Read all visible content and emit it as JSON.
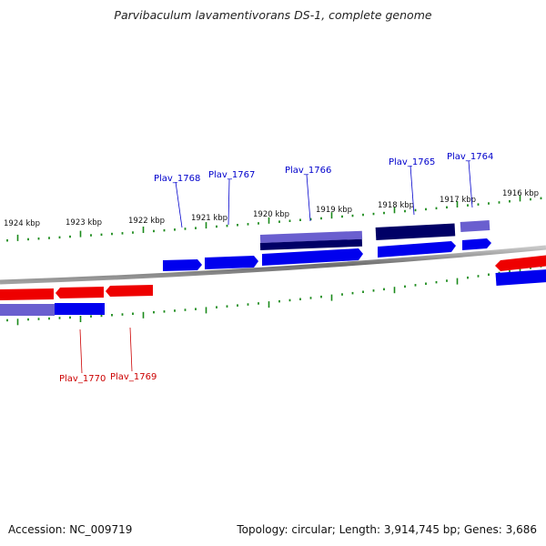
{
  "title": "Parvibaculum lavamentivorans DS-1, complete genome",
  "footer": {
    "accession": "Accession: NC_009719",
    "summary": "Topology: circular; Length: 3,914,745 bp; Genes: 3,686"
  },
  "colors": {
    "forward_gene": "#0000ee",
    "forward_gene_light": "#6a5fcf",
    "forward_gene_dark": "#000066",
    "reverse_gene": "#ee0000",
    "reverse_gene_light": "#6a5fcf",
    "reverse_gene_alt": "#0000ee",
    "tick": "#1a8a1a",
    "backbone": "#777777",
    "forward_label": "#0000cc",
    "reverse_label": "#cc0000"
  },
  "scale_labels": [
    "1924 kbp",
    "1923 kbp",
    "1922 kbp",
    "1921 kbp",
    "1920 kbp",
    "1919 kbp",
    "1918 kbp",
    "1917 kbp",
    "1916 kbp"
  ],
  "gene_labels": {
    "forward": [
      "Plav_1768",
      "Plav_1767",
      "Plav_1766",
      "Plav_1765",
      "Plav_1764"
    ],
    "reverse": [
      "Plav_1770",
      "Plav_1769"
    ]
  }
}
